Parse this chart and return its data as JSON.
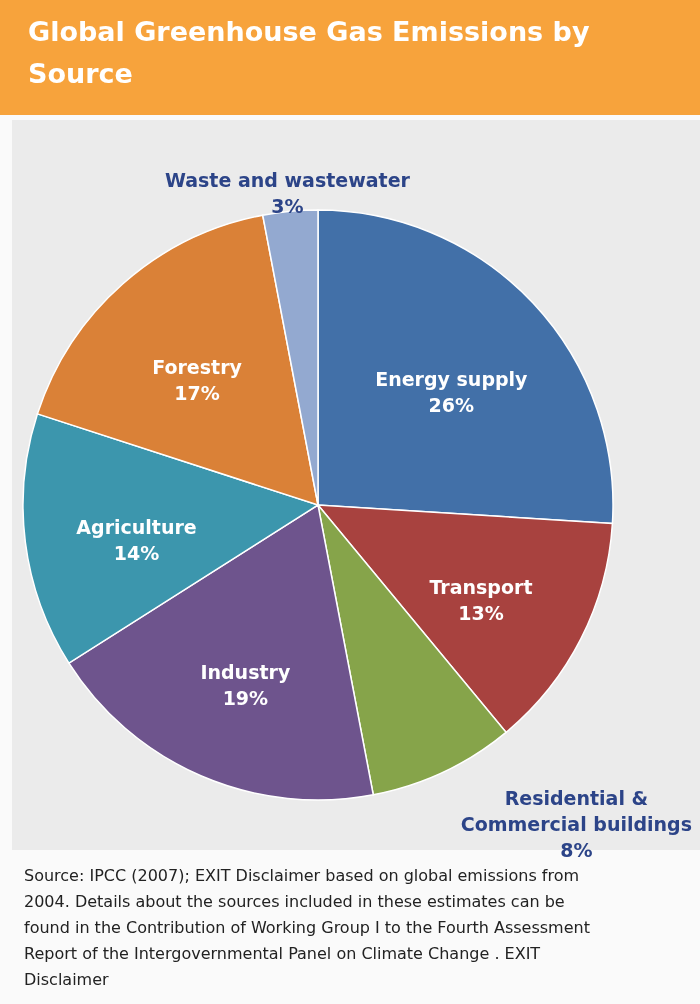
{
  "chart_data": {
    "type": "pie",
    "title": "Global Greenhouse Gas Emissions by Source",
    "categories": [
      "Energy supply",
      "Transport",
      "Residential & Commercial buildings",
      "Industry",
      "Agriculture",
      "Forestry",
      "Waste and wastewater"
    ],
    "values": [
      26,
      13,
      8,
      19,
      14,
      17,
      3
    ],
    "value_labels": [
      "26%",
      "13%",
      "8%",
      "19%",
      "14%",
      "17%",
      "3%"
    ],
    "colors": [
      "#4270a8",
      "#a8423f",
      "#86a44a",
      "#6e548d",
      "#3c96ad",
      "#da8137",
      "#93a9d0"
    ],
    "annotations": [
      "Source: IPCC (2007); EXIT Disclaimer based on global emissions from 2004. Details about the sources included in these estimates can be found in the Contribution of Working Group I to the Fourth Assessment Report of the Intergovernmental Panel on Climate Change . EXIT Disclaimer"
    ]
  }
}
